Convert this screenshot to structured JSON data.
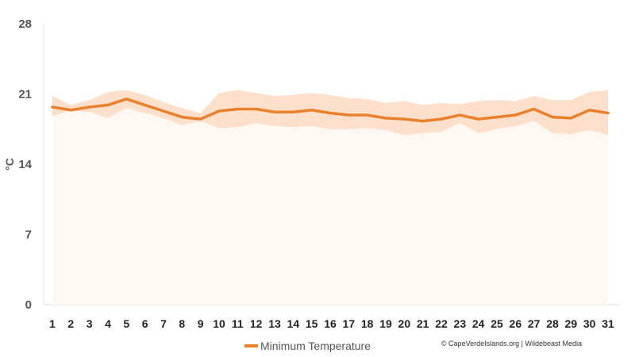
{
  "chart_data": {
    "type": "line",
    "title": "",
    "xlabel": "",
    "ylabel": "°C",
    "x": [
      1,
      2,
      3,
      4,
      5,
      6,
      7,
      8,
      9,
      10,
      11,
      12,
      13,
      14,
      15,
      16,
      17,
      18,
      19,
      20,
      21,
      22,
      23,
      24,
      25,
      26,
      27,
      28,
      29,
      30,
      31
    ],
    "ylim": [
      0,
      28
    ],
    "yticks": [
      0,
      7,
      14,
      21,
      28
    ],
    "grid": false,
    "legend": "bottom-center",
    "series": [
      {
        "name": "Minimum Temperature",
        "color": "#e8802c",
        "band_color": "#fde0cb",
        "values": [
          19.7,
          19.4,
          19.7,
          19.9,
          20.5,
          19.9,
          19.3,
          18.7,
          18.5,
          19.3,
          19.5,
          19.5,
          19.2,
          19.2,
          19.4,
          19.1,
          18.9,
          18.9,
          18.6,
          18.5,
          18.3,
          18.5,
          18.9,
          18.5,
          18.7,
          18.9,
          19.5,
          18.7,
          18.6,
          19.4,
          19.1
        ],
        "upper": [
          20.8,
          19.9,
          20.4,
          21.2,
          21.4,
          20.9,
          20.2,
          19.6,
          19.1,
          21.1,
          21.4,
          21.1,
          20.8,
          20.9,
          21.1,
          20.9,
          20.6,
          20.5,
          20.1,
          20.3,
          19.9,
          20.1,
          20.0,
          20.3,
          20.4,
          20.3,
          20.8,
          20.4,
          20.4,
          21.2,
          21.4
        ],
        "lower": [
          18.8,
          19.4,
          19.2,
          18.6,
          19.6,
          19.1,
          18.6,
          17.9,
          18.3,
          17.6,
          17.7,
          18.1,
          17.8,
          17.7,
          17.8,
          17.5,
          17.5,
          17.6,
          17.4,
          16.9,
          17.1,
          17.2,
          18.1,
          17.1,
          17.5,
          17.8,
          18.3,
          17.1,
          17.0,
          17.4,
          16.9
        ]
      }
    ]
  },
  "credit": "© CapeVerdeIslands.org | Wildebeast Media"
}
